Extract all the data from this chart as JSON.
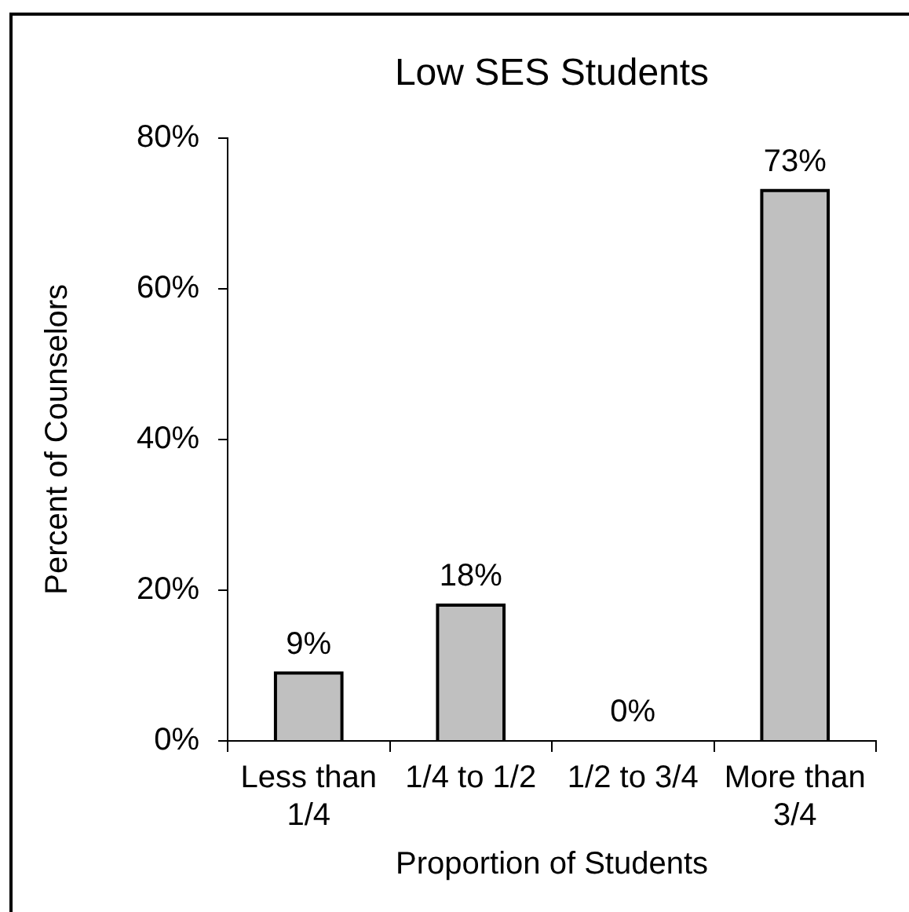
{
  "chart_data": {
    "type": "bar",
    "title": "Low SES Students",
    "xlabel": "Proportion of Students",
    "ylabel": "Percent of Counselors",
    "categories": [
      "Less than 1/4",
      "1/4 to 1/2",
      "1/2 to 3/4",
      "More than 3/4"
    ],
    "values": [
      9,
      18,
      0,
      73
    ],
    "color": "#c0c0c0",
    "value_labels": [
      "9%",
      "18%",
      "0%",
      "73%"
    ],
    "ylim": [
      0,
      80
    ],
    "yticks": [
      {
        "value": 0,
        "label": "0%"
      },
      {
        "value": 20,
        "label": "20%"
      },
      {
        "value": 40,
        "label": "40%"
      },
      {
        "value": 60,
        "label": "60%"
      },
      {
        "value": 80,
        "label": "80%"
      }
    ]
  }
}
